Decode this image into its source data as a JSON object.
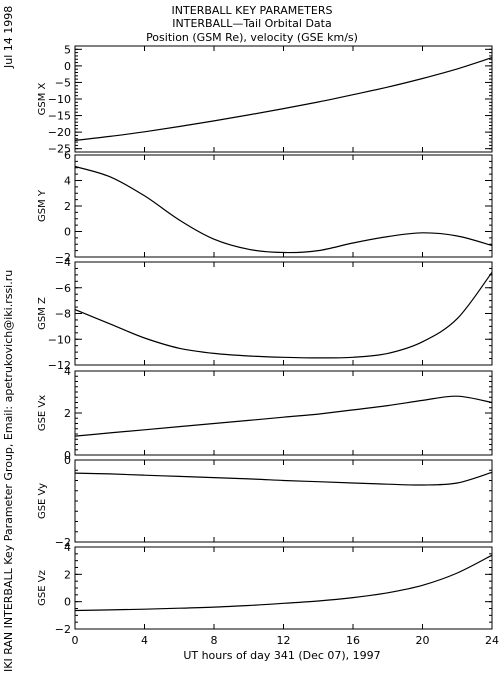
{
  "header": {
    "title_line1": "INTERBALL KEY PARAMETERS",
    "title_line2": "INTERBALL—Tail Orbital Data",
    "title_line3": "Position (GSM Re), velocity (GSE km/s)"
  },
  "side_date": "Jul 14 1998",
  "side_credit": "IKI RAN INTERBALL Key Parameter Group, Email: apetrukovich@iki.rssi.ru",
  "chart_data": {
    "type": "line",
    "xlabel": "UT hours of day 341 (Dec 07), 1997",
    "xlim": [
      0,
      24
    ],
    "x_ticks": [
      "0",
      "4",
      "8",
      "12",
      "16",
      "20",
      "24"
    ],
    "x": [
      0,
      2,
      4,
      6,
      8,
      10,
      12,
      14,
      16,
      18,
      20,
      22,
      24
    ],
    "panels": [
      {
        "ylabel": "GSM X",
        "ylim": [
          -26,
          6
        ],
        "ticks": [
          "5",
          "0",
          "−5",
          "−10",
          "−15",
          "−20",
          "−25"
        ],
        "values": [
          -22.5,
          -21.3,
          -19.9,
          -18.3,
          -16.6,
          -14.8,
          -12.9,
          -10.9,
          -8.7,
          -6.4,
          -3.8,
          -0.9,
          2.5
        ]
      },
      {
        "ylabel": "GSM Y",
        "ylim": [
          -2,
          6
        ],
        "ticks": [
          "6",
          "4",
          "2",
          "0",
          "−2"
        ],
        "values": [
          5.1,
          4.3,
          2.8,
          0.9,
          -0.6,
          -1.4,
          -1.65,
          -1.5,
          -0.9,
          -0.4,
          -0.1,
          -0.35,
          -1.1
        ]
      },
      {
        "ylabel": "GSM Z",
        "ylim": [
          -12,
          -4
        ],
        "ticks": [
          "−4",
          "−6",
          "−8",
          "−10",
          "−12"
        ],
        "values": [
          -7.7,
          -8.8,
          -9.9,
          -10.7,
          -11.1,
          -11.3,
          -11.4,
          -11.45,
          -11.4,
          -11.1,
          -10.2,
          -8.4,
          -4.8
        ]
      },
      {
        "ylabel": "GSE Vx",
        "ylim": [
          0,
          4
        ],
        "ticks": [
          "4",
          "2",
          "0"
        ],
        "values": [
          0.9,
          1.05,
          1.2,
          1.35,
          1.5,
          1.65,
          1.8,
          1.95,
          2.15,
          2.35,
          2.6,
          2.8,
          2.5
        ]
      },
      {
        "ylabel": "GSE Vy",
        "ylim": [
          -2,
          0
        ],
        "ticks": [
          "0",
          "−2"
        ],
        "values": [
          -0.32,
          -0.34,
          -0.37,
          -0.4,
          -0.43,
          -0.46,
          -0.5,
          -0.53,
          -0.56,
          -0.59,
          -0.61,
          -0.56,
          -0.3
        ]
      },
      {
        "ylabel": "GSE Vz",
        "ylim": [
          -2,
          4
        ],
        "ticks": [
          "4",
          "2",
          "0",
          "−2"
        ],
        "values": [
          -0.65,
          -0.6,
          -0.55,
          -0.48,
          -0.4,
          -0.28,
          -0.12,
          0.05,
          0.3,
          0.65,
          1.2,
          2.1,
          3.4
        ]
      }
    ]
  }
}
